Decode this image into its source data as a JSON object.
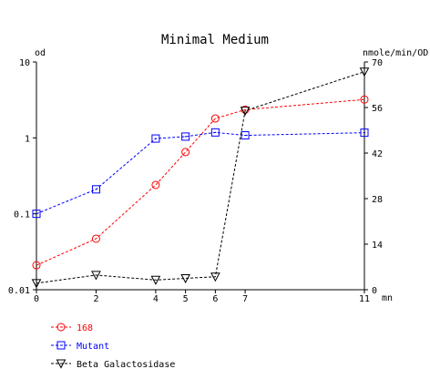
{
  "chart_data": {
    "type": "line",
    "title": "Minimal Medium",
    "x_unit_label": "mn",
    "y_left_label": "od",
    "y_right_label": "nmole/min/OD",
    "x_ticks": [
      0,
      2,
      4,
      5,
      6,
      7,
      11
    ],
    "y_left_ticks": [
      "0.01",
      "0.1",
      "1",
      "10"
    ],
    "y_left_scale": "log",
    "y_left_range": [
      0.01,
      10
    ],
    "y_right_ticks": [
      "0",
      "14",
      "28",
      "42",
      "56",
      "70"
    ],
    "y_right_range": [
      0,
      70
    ],
    "series": [
      {
        "name": "168",
        "axis": "left",
        "color": "#ff0000",
        "marker": "circle",
        "x": [
          0,
          2,
          4,
          5,
          6,
          7,
          11
        ],
        "y": [
          0.021,
          0.047,
          0.24,
          0.65,
          1.8,
          2.35,
          3.2
        ]
      },
      {
        "name": "Mutant",
        "axis": "left",
        "color": "#0000ff",
        "marker": "square",
        "x": [
          0,
          2,
          4,
          5,
          6,
          7,
          11
        ],
        "y": [
          0.1,
          0.21,
          0.98,
          1.04,
          1.18,
          1.08,
          1.17
        ]
      },
      {
        "name": "Beta Galactosidase",
        "axis": "right",
        "color": "#000000",
        "marker": "triangle-down",
        "x": [
          0,
          2,
          4,
          5,
          6,
          7,
          11
        ],
        "y": [
          2,
          4.5,
          3,
          3.5,
          4,
          55,
          67
        ]
      }
    ],
    "legend_position": "bottom-left"
  }
}
